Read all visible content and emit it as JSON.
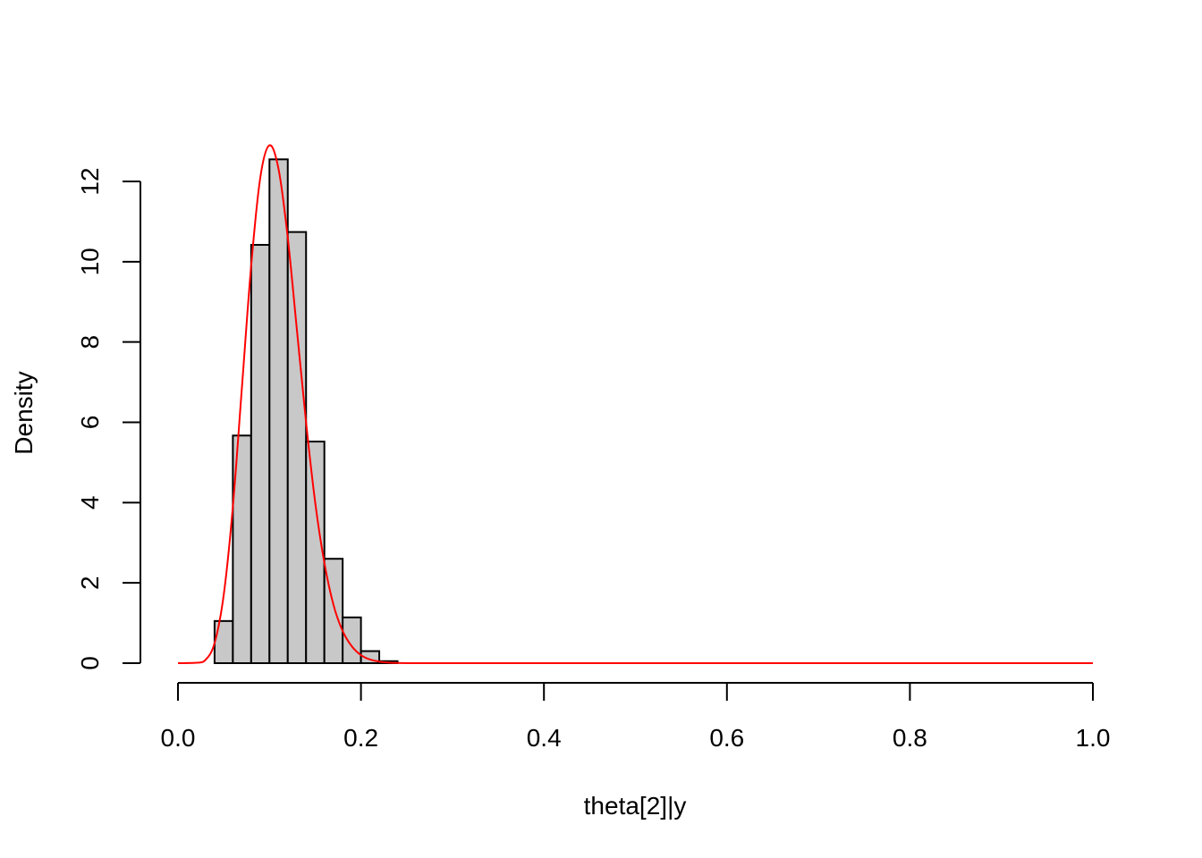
{
  "chart_data": {
    "type": "bar",
    "xlabel": "theta[2]|y",
    "ylabel": "Density",
    "xlim": [
      0,
      1
    ],
    "ylim": [
      0,
      13
    ],
    "x_ticks": [
      "0.0",
      "0.2",
      "0.4",
      "0.6",
      "0.8",
      "1.0"
    ],
    "y_ticks": [
      "0",
      "2",
      "4",
      "6",
      "8",
      "10",
      "12"
    ],
    "histogram": {
      "bin_edges": [
        0.02,
        0.04,
        0.06,
        0.08,
        0.1,
        0.12,
        0.14,
        0.16,
        0.18,
        0.2,
        0.22,
        0.24
      ],
      "values": [
        0.0,
        1.05,
        5.67,
        10.42,
        12.55,
        10.74,
        5.52,
        2.6,
        1.14,
        0.3,
        0.05
      ],
      "fill": "#c8c8c8",
      "stroke": "#000000"
    },
    "density_curve": {
      "color": "#ff0000",
      "x": [
        0.0,
        0.02,
        0.03,
        0.04,
        0.05,
        0.06,
        0.07,
        0.08,
        0.09,
        0.1,
        0.11,
        0.12,
        0.13,
        0.14,
        0.15,
        0.16,
        0.17,
        0.18,
        0.19,
        0.2,
        0.21,
        0.22,
        0.23,
        0.24,
        0.26,
        0.3,
        0.4,
        0.6,
        0.8,
        1.0
      ],
      "y": [
        0.0,
        0.01,
        0.08,
        0.5,
        1.7,
        3.9,
        6.9,
        9.9,
        12.1,
        12.9,
        12.3,
        10.6,
        8.3,
        6.0,
        4.0,
        2.5,
        1.45,
        0.8,
        0.42,
        0.2,
        0.09,
        0.04,
        0.015,
        0.006,
        0.001,
        0.0,
        0.0,
        0.0,
        0.0,
        0.0
      ]
    }
  }
}
